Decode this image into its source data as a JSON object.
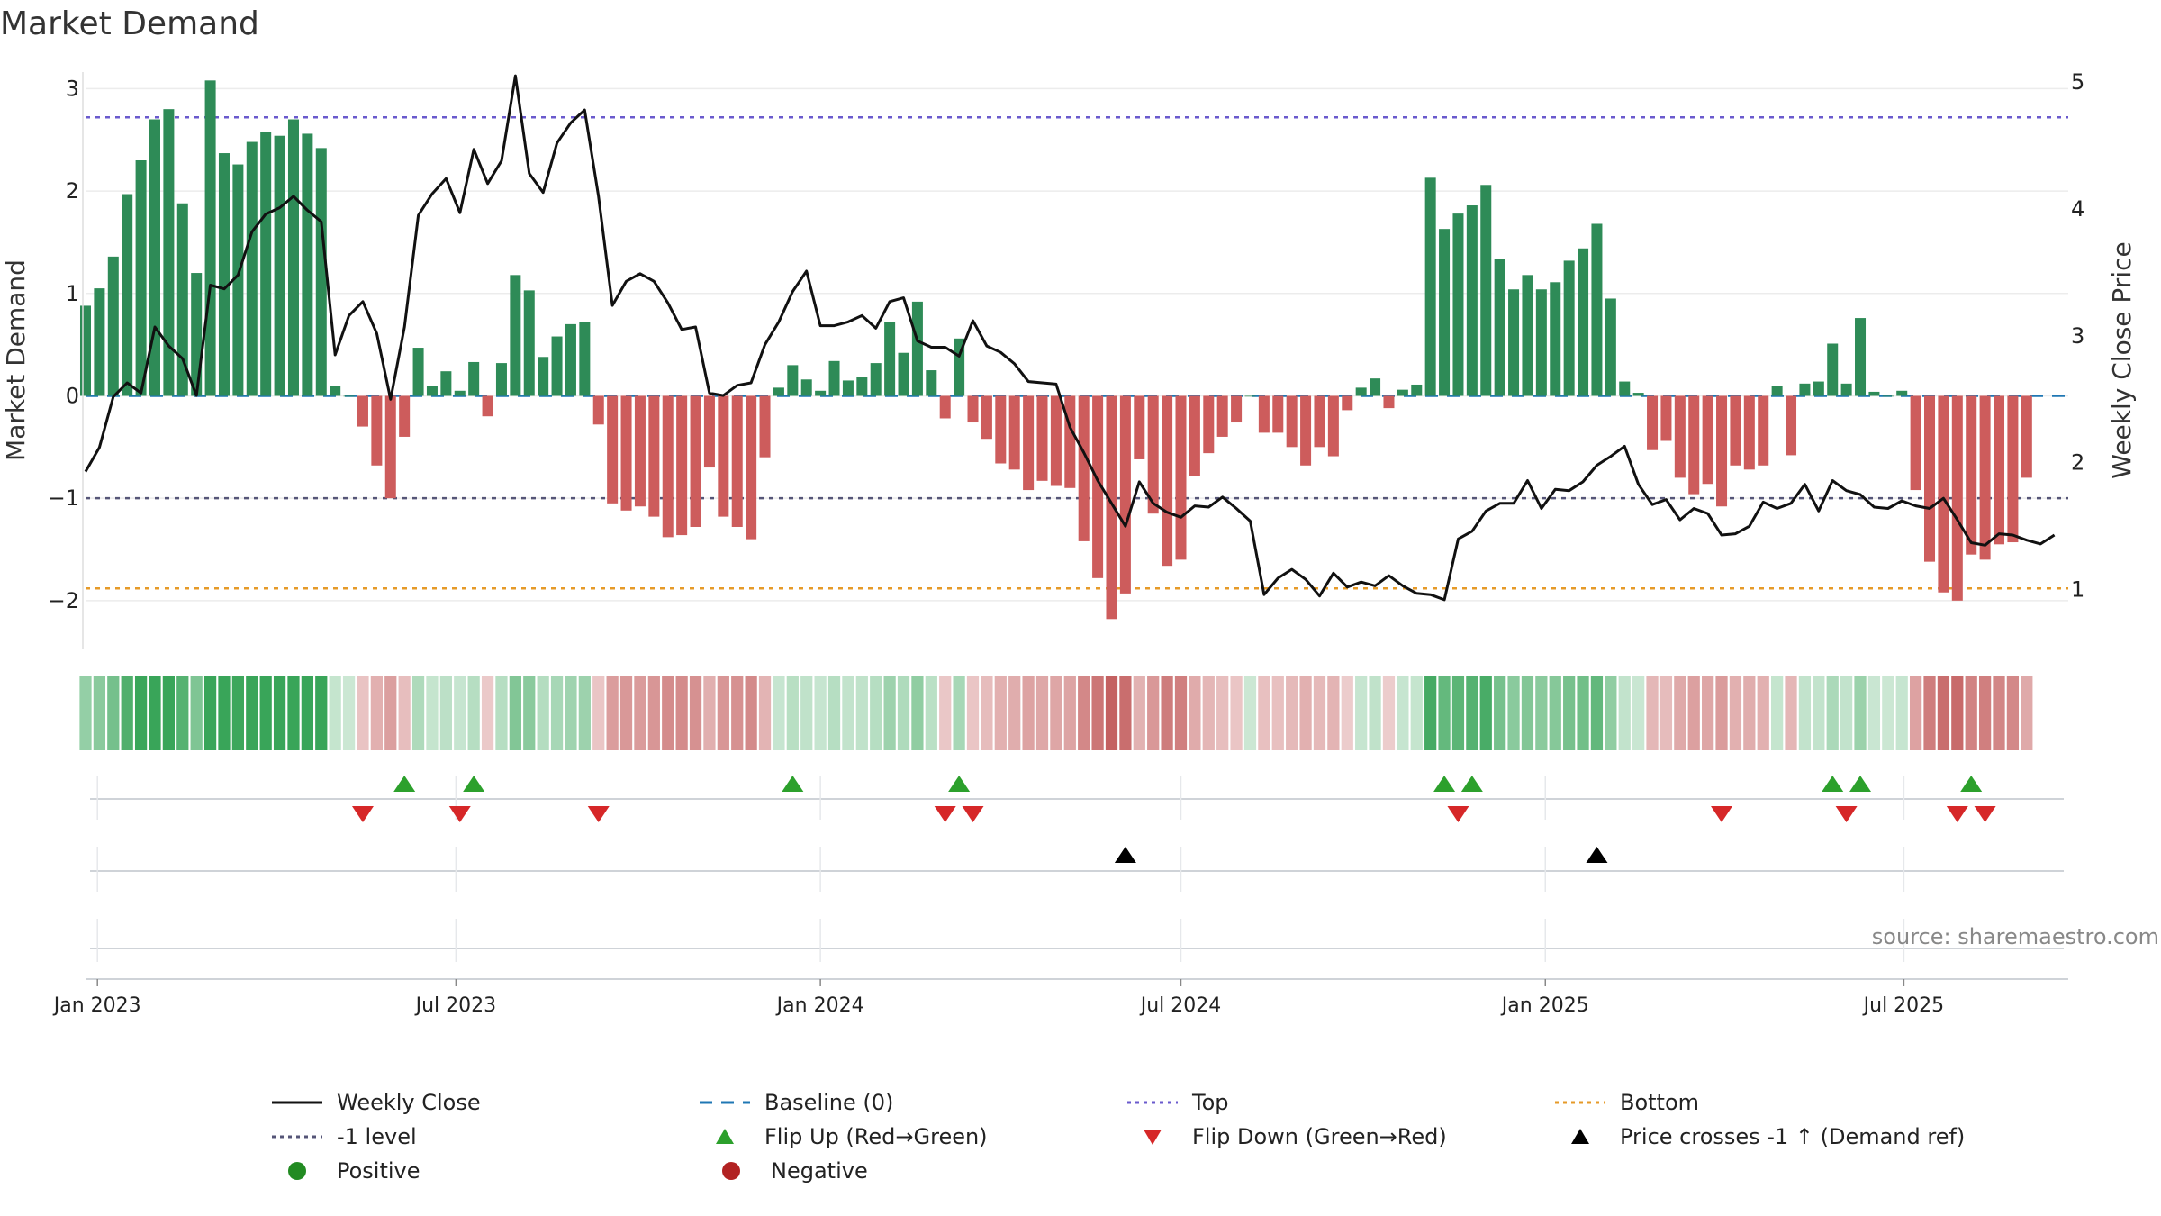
{
  "title": "Market Demand",
  "source": "source: sharemaestro.com",
  "colors": {
    "positive": "#2e8b57",
    "negative": "#cd5c5c",
    "close": "#111111",
    "top": "#6a5acd",
    "bottom": "#e69a28",
    "level": "#555577",
    "baseline": "#1f77b4",
    "flip_up": "#2ca02c",
    "flip_down": "#d62728",
    "cross": "#000000",
    "legend_positive": "#228b22",
    "legend_negative": "#b22222"
  },
  "chart_data": {
    "type": "bar",
    "title": "Market Demand",
    "ylabel": "Market Demand",
    "y2label": "Weekly Close Price",
    "ylim": [
      -2.45,
      3.25
    ],
    "y2lim": [
      0.55,
      5.15
    ],
    "yticks": [
      3,
      2,
      1,
      0,
      -1,
      -2
    ],
    "yticklabels": [
      "3",
      "2",
      "1",
      "0",
      "−1",
      "−2"
    ],
    "y2ticks": [
      5,
      4,
      3,
      2,
      1
    ],
    "y2ticklabels": [
      "5",
      "4",
      "3",
      "2",
      "1"
    ],
    "x_start": "2022-12-26",
    "x_end": "2025-09-22",
    "xticks": [
      {
        "date": "2023-01-01",
        "label": "Jan 2023"
      },
      {
        "date": "2023-07-01",
        "label": "Jul 2023"
      },
      {
        "date": "2024-01-01",
        "label": "Jan 2024"
      },
      {
        "date": "2024-07-01",
        "label": "Jul 2024"
      },
      {
        "date": "2025-01-01",
        "label": "Jan 2025"
      },
      {
        "date": "2025-07-01",
        "label": "Jul 2025"
      }
    ],
    "start_date": "2022-12-26",
    "interval_days": 7,
    "demand": [
      0.88,
      1.05,
      1.36,
      1.97,
      2.3,
      2.7,
      2.8,
      1.88,
      1.2,
      3.08,
      2.37,
      2.26,
      2.48,
      2.58,
      2.54,
      2.7,
      2.56,
      2.42,
      0.1,
      0,
      -0.3,
      -0.68,
      -1.0,
      -0.4,
      0.47,
      0.1,
      0.24,
      0.05,
      0.33,
      -0.2,
      0.32,
      1.18,
      1.03,
      0.38,
      0.58,
      0.7,
      0.72,
      -0.28,
      -1.05,
      -1.12,
      -1.08,
      -1.18,
      -1.38,
      -1.36,
      -1.28,
      -0.7,
      -1.18,
      -1.28,
      -1.4,
      -0.6,
      0.08,
      0.3,
      0.16,
      0.05,
      0.34,
      0.15,
      0.18,
      0.32,
      0.72,
      0.42,
      0.92,
      0.25,
      -0.22,
      0.56,
      -0.26,
      -0.42,
      -0.66,
      -0.72,
      -0.92,
      -0.83,
      -0.88,
      -0.9,
      -1.42,
      -1.78,
      -2.18,
      -1.93,
      -0.62,
      -1.15,
      -1.66,
      -1.6,
      -0.78,
      -0.56,
      -0.4,
      -0.26,
      0.0,
      -0.36,
      -0.36,
      -0.5,
      -0.68,
      -0.5,
      -0.59,
      -0.14,
      0.08,
      0.17,
      -0.12,
      0.06,
      0.11,
      2.13,
      1.63,
      1.78,
      1.86,
      2.06,
      1.34,
      1.04,
      1.18,
      1.04,
      1.11,
      1.32,
      1.44,
      1.68,
      0.95,
      0.14,
      0.03,
      -0.53,
      -0.44,
      -0.8,
      -0.96,
      -0.86,
      -1.08,
      -0.68,
      -0.72,
      -0.68,
      0.1,
      -0.58,
      0.12,
      0.14,
      0.51,
      0.12,
      0.76,
      0.04,
      0.0,
      0.05,
      -0.92,
      -1.62,
      -1.92,
      -2.0,
      -1.55,
      -1.6,
      -1.45,
      -1.43,
      -0.8
    ],
    "close": [
      1.93,
      2.12,
      2.52,
      2.63,
      2.55,
      3.07,
      2.92,
      2.82,
      2.53,
      3.4,
      3.37,
      3.48,
      3.82,
      3.96,
      4.01,
      4.1,
      3.99,
      3.9,
      2.85,
      3.16,
      3.27,
      3.02,
      2.5,
      3.07,
      3.95,
      4.12,
      4.24,
      3.97,
      4.47,
      4.2,
      4.38,
      5.05,
      4.28,
      4.13,
      4.52,
      4.68,
      4.78,
      4.1,
      3.24,
      3.43,
      3.49,
      3.43,
      3.26,
      3.05,
      3.07,
      2.55,
      2.53,
      2.61,
      2.63,
      2.93,
      3.11,
      3.35,
      3.51,
      3.08,
      3.08,
      3.11,
      3.16,
      3.06,
      3.27,
      3.3,
      2.96,
      2.91,
      2.91,
      2.84,
      3.12,
      2.92,
      2.87,
      2.78,
      2.64,
      2.63,
      2.62,
      2.28,
      2.08,
      1.86,
      1.68,
      1.5,
      1.85,
      1.68,
      1.61,
      1.57,
      1.66,
      1.65,
      1.73,
      1.64,
      1.54,
      0.96,
      1.09,
      1.16,
      1.08,
      0.95,
      1.13,
      1.02,
      1.06,
      1.03,
      1.11,
      1.03,
      0.97,
      0.96,
      0.92,
      1.4,
      1.46,
      1.62,
      1.68,
      1.68,
      1.86,
      1.64,
      1.79,
      1.78,
      1.85,
      1.98,
      2.05,
      2.13,
      1.83,
      1.67,
      1.71,
      1.55,
      1.64,
      1.6,
      1.43,
      1.44,
      1.5,
      1.69,
      1.64,
      1.68,
      1.83,
      1.62,
      1.86,
      1.78,
      1.75,
      1.65,
      1.64,
      1.7,
      1.66,
      1.64,
      1.72,
      1.55,
      1.37,
      1.35,
      1.44,
      1.43,
      1.39,
      1.36,
      1.43
    ],
    "reference_lines": {
      "top": 2.72,
      "level_neg1": -1.0,
      "bottom": -1.88,
      "baseline": 0
    },
    "flip_up_dates": [
      "2023-06-05",
      "2023-07-10",
      "2023-12-18",
      "2024-03-11",
      "2024-11-11",
      "2024-11-25",
      "2025-05-26",
      "2025-06-09",
      "2025-08-04"
    ],
    "flip_down_dates": [
      "2023-05-15",
      "2023-07-03",
      "2023-09-11",
      "2024-03-04",
      "2024-03-18",
      "2024-11-18",
      "2025-03-31",
      "2025-06-02",
      "2025-07-28",
      "2025-08-11"
    ],
    "price_cross_dates": [
      "2024-06-03",
      "2025-01-27"
    ]
  },
  "legend": [
    {
      "label": "Weekly Close",
      "key": "close-line"
    },
    {
      "label": "Baseline (0)",
      "key": "baseline-line"
    },
    {
      "label": "Top",
      "key": "top-line"
    },
    {
      "label": "Bottom",
      "key": "bottom-line"
    },
    {
      "label": "-1 level",
      "key": "level-line"
    },
    {
      "label": "Flip Up (Red→Green)",
      "key": "flip-up"
    },
    {
      "label": "Flip Down (Green→Red)",
      "key": "flip-down"
    },
    {
      "label": "Price crosses -1 ↑ (Demand ref)",
      "key": "price-cross"
    },
    {
      "label": "Positive",
      "key": "positive-dot"
    },
    {
      "label": "Negative",
      "key": "negative-dot"
    }
  ]
}
